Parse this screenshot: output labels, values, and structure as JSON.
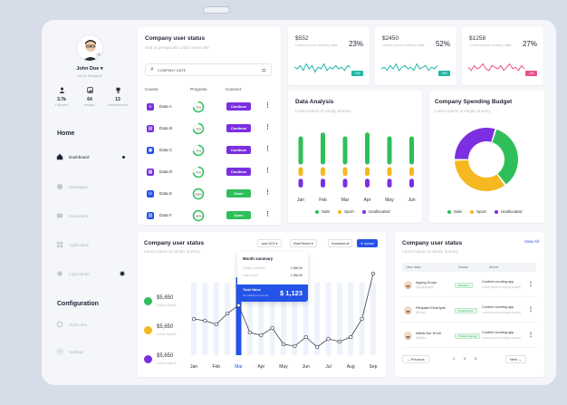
{
  "profile": {
    "name": "John Doe",
    "role": "UI/UX Designer",
    "stats": [
      {
        "icon": "person-icon",
        "value": "3.7k",
        "label": "Followers"
      },
      {
        "icon": "image-icon",
        "value": "64",
        "label": "Images"
      },
      {
        "icon": "trophy-icon",
        "value": "13",
        "label": "Achievements"
      }
    ]
  },
  "sidebar": {
    "home_title": "Home",
    "items": [
      {
        "label": "Dashboard",
        "icon": "home-icon",
        "active": true
      },
      {
        "label": "Messages",
        "icon": "message-icon"
      },
      {
        "label": "Document",
        "icon": "document-icon"
      },
      {
        "label": "Application",
        "icon": "grid-icon"
      },
      {
        "label": "Light Mode",
        "icon": "sun-icon"
      }
    ],
    "config_title": "Configuration",
    "config_items": [
      {
        "label": "Stack.dev",
        "icon": "stack-icon"
      },
      {
        "label": "Settings",
        "icon": "gear-icon"
      }
    ]
  },
  "course_card": {
    "title": "Company user status",
    "subtitle": "Sed ut perspiciatis unde omnis iste",
    "search_value": "COMPANY DATE",
    "headers": [
      "Course",
      "Progress",
      "Connect"
    ],
    "rows": [
      {
        "label": "Data A",
        "icon": "data-a-icon",
        "color": "#7b2fe0",
        "progress": "73%",
        "pct": 0.73,
        "action": "Continue",
        "state": "continue"
      },
      {
        "label": "Data B",
        "icon": "data-b-icon",
        "color": "#7b2fe0",
        "progress": "73%",
        "pct": 0.73,
        "action": "Continue",
        "state": "continue"
      },
      {
        "label": "Data C",
        "icon": "data-c-icon",
        "color": "#2453e8",
        "progress": "73%",
        "pct": 0.73,
        "action": "Continue",
        "state": "continue"
      },
      {
        "label": "Data D",
        "icon": "data-d-icon",
        "color": "#7b2fe0",
        "progress": "73%",
        "pct": 0.73,
        "action": "Continue",
        "state": "continue"
      },
      {
        "label": "Data E",
        "icon": "data-e-icon",
        "color": "#2453e8",
        "progress": "100%",
        "pct": 1.0,
        "action": "Done",
        "state": "done"
      },
      {
        "label": "Data F",
        "icon": "data-f-icon",
        "color": "#2453e8",
        "progress": "100%",
        "pct": 1.0,
        "action": "Done",
        "state": "done"
      }
    ]
  },
  "kpis": [
    {
      "value": "$552",
      "desc": "Lorem ipsum dummy data",
      "percent": "23%",
      "badge": "+3%",
      "color": "#1fb8a6",
      "spark": [
        6,
        5,
        7,
        4,
        8,
        5,
        7,
        3,
        6,
        5,
        8,
        4,
        6,
        5,
        7,
        5,
        6,
        4,
        7,
        6
      ]
    },
    {
      "value": "$2450",
      "desc": "Lorem ipsum dummy data",
      "percent": "52%",
      "badge": "+5%",
      "color": "#1fb8a6",
      "spark": [
        5,
        6,
        4,
        7,
        5,
        8,
        4,
        6,
        7,
        5,
        6,
        4,
        8,
        5,
        6,
        7,
        4,
        6,
        5,
        7
      ]
    },
    {
      "value": "$1258",
      "desc": "Lorem ipsum dummy data",
      "percent": "27%",
      "badge": "-2%",
      "color": "#e8508e",
      "spark": [
        6,
        4,
        7,
        5,
        6,
        8,
        5,
        4,
        7,
        6,
        5,
        7,
        4,
        6,
        8,
        5,
        6,
        4,
        7,
        5
      ]
    }
  ],
  "analysis": {
    "title": "Data Analysis",
    "subtitle": "Lorem ipsum is simply dummy",
    "legend": [
      {
        "label": "Sale",
        "color": "#2fbf5a"
      },
      {
        "label": "Sport",
        "color": "#f5b820"
      },
      {
        "label": "Unallocated",
        "color": "#7b2fe0"
      }
    ]
  },
  "budget": {
    "title": "Company Spending Budget",
    "subtitle": "Lorem ipsum is simply dummy",
    "legend": [
      {
        "label": "Sale",
        "color": "#2fbf5a"
      },
      {
        "label": "Sport",
        "color": "#f5b820"
      },
      {
        "label": "Unallocated",
        "color": "#7b2fe0"
      }
    ]
  },
  "status_chart": {
    "title": "Company user status",
    "subtitle": "Lorem ipsum is simply dummy",
    "chips": {
      "date": "June 2022",
      "sort": "Most Recent",
      "download": "Download all",
      "upload": "Upload"
    },
    "metrics": [
      {
        "value": "$5,650",
        "label": "Lorem data B",
        "color": "#2fbf5a"
      },
      {
        "value": "$5,650",
        "label": "Lorem data B",
        "color": "#f5b820"
      },
      {
        "value": "$5,650",
        "label": "Lorem data B",
        "color": "#7b2fe0"
      }
    ],
    "tooltip": {
      "title": "Month summary",
      "rows": [
        {
          "label": "Today's revenue",
          "value": "1,056.00"
        },
        {
          "label": "Last month",
          "value": "1,056.00"
        }
      ],
      "total_label": "Total Value",
      "total_sub": "Not stated is revenue",
      "total": "$ 1,123"
    }
  },
  "chart_data": [
    {
      "type": "bar",
      "categories": [
        "Jan",
        "Feb",
        "Mar",
        "Apr",
        "May",
        "Jun"
      ],
      "series": [
        {
          "name": "Sale",
          "color": "#2fbf5a",
          "values": [
            40,
            45,
            40,
            45,
            40,
            40
          ]
        },
        {
          "name": "Sport",
          "color": "#f5b820",
          "values": [
            15,
            15,
            15,
            15,
            15,
            15
          ]
        },
        {
          "name": "Unallocated",
          "color": "#7b2fe0",
          "values": [
            15,
            15,
            15,
            15,
            15,
            15
          ]
        }
      ]
    },
    {
      "type": "pie",
      "series": [
        {
          "name": "Sale",
          "color": "#2fbf5a",
          "values": [
            35
          ]
        },
        {
          "name": "Sport",
          "color": "#f5b820",
          "values": [
            35
          ]
        },
        {
          "name": "Unallocated",
          "color": "#7b2fe0",
          "values": [
            30
          ]
        }
      ]
    },
    {
      "type": "line",
      "x": [
        "Jan",
        "",
        "Feb",
        "",
        "Mar",
        "",
        "Apr",
        "",
        "May",
        "",
        "Jun",
        "",
        "Jul",
        "",
        "Aug",
        "",
        "Sep"
      ],
      "values": [
        40,
        38,
        34,
        46,
        55,
        25,
        22,
        30,
        12,
        10,
        20,
        9,
        18,
        15,
        20,
        40,
        90
      ],
      "highlight": "Mar",
      "ylim": [
        0,
        100
      ]
    }
  ],
  "users": {
    "title": "Company user status",
    "subtitle": "Lorem ipsum is simply dummy",
    "view_all": "View All",
    "headers": [
      "User data",
      "Status",
      "About"
    ],
    "rows": [
      {
        "name": "Agung Suryo",
        "sub": "@agungsuryo",
        "status": "Designer",
        "about": "Content curating app",
        "about_sub": "Lorem ipsum is simply dummy"
      },
      {
        "name": "Fitriyatul Khoiriyah",
        "sub": "@fitriyk",
        "status": "Programmer",
        "about": "Content curating app",
        "about_sub": "Lorem ipsum is simply dummy"
      },
      {
        "name": "Alfida Nur Khoir",
        "sub": "@alfida",
        "status": "Product Manag",
        "about": "Content curating app",
        "about_sub": "Lorem ipsum is simply dummy"
      }
    ],
    "prev": "Previous",
    "next": "Next",
    "pages": [
      "1",
      "2",
      "3"
    ]
  }
}
